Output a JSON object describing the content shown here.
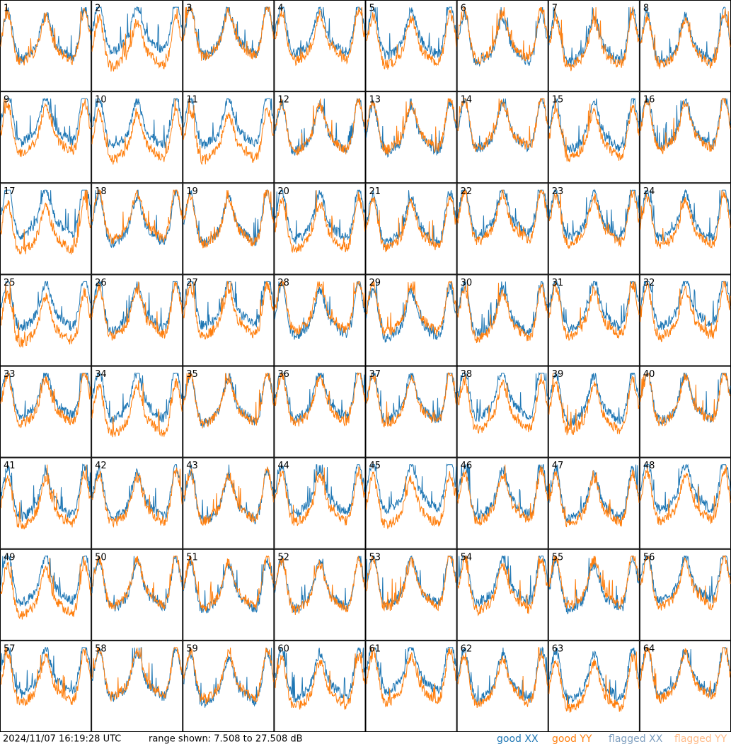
{
  "panels": [
    "1",
    "2",
    "3",
    "4",
    "5",
    "6",
    "7",
    "8",
    "9",
    "10",
    "11",
    "12",
    "13",
    "14",
    "15",
    "16",
    "17",
    "18",
    "19",
    "20",
    "21",
    "22",
    "23",
    "24",
    "25",
    "26",
    "27",
    "28",
    "29",
    "30",
    "31",
    "32",
    "33",
    "34",
    "35",
    "36",
    "37",
    "38",
    "39",
    "40",
    "41",
    "42",
    "43",
    "44",
    "45",
    "46",
    "47",
    "48",
    "49",
    "50",
    "51",
    "52",
    "53",
    "54",
    "55",
    "56",
    "57",
    "58",
    "59",
    "60",
    "61",
    "62",
    "63",
    "64"
  ],
  "footer": {
    "timestamp": "2024/11/07 16:19:28 UTC",
    "range": "range shown: 7.508 to 27.508 dB"
  },
  "legend": [
    {
      "name": "good XX",
      "color": "#1f77b4"
    },
    {
      "name": "good YY",
      "color": "#ff7f0e"
    },
    {
      "name": "flagged XX",
      "color": "#7f9fbf"
    },
    {
      "name": "flagged YY",
      "color": "#ffbb88"
    }
  ]
}
